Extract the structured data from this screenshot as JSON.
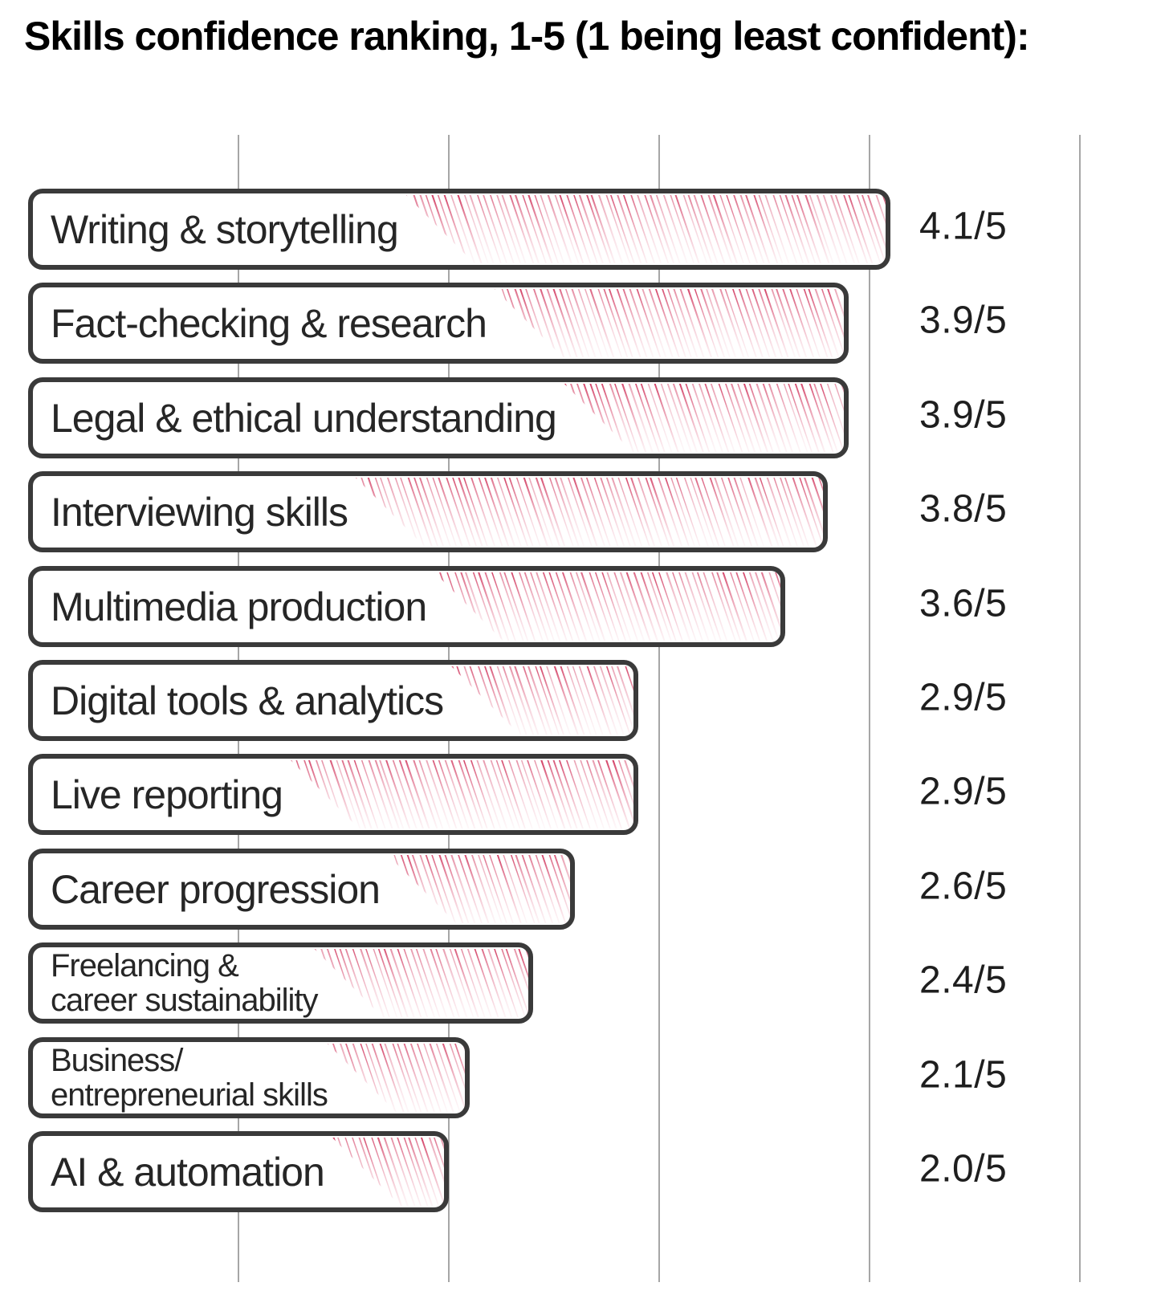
{
  "title": "Skills confidence ranking, 1-5 (1 being least confident):",
  "chart_data": {
    "type": "bar",
    "orientation": "horizontal",
    "title": "Skills confidence ranking, 1-5 (1 being least confident):",
    "categories": [
      "Writing & storytelling",
      "Fact-checking & research",
      "Legal & ethical understanding",
      "Interviewing skills",
      "Multimedia production",
      "Digital tools & analytics",
      "Live reporting",
      "Career progression",
      "Freelancing &\ncareer sustainability",
      "Business/\nentrepreneurial skills",
      "AI & automation"
    ],
    "values": [
      4.1,
      3.9,
      3.9,
      3.8,
      3.6,
      2.9,
      2.9,
      2.6,
      2.4,
      2.1,
      2.0
    ],
    "score_labels": [
      "4.1/5",
      "3.9/5",
      "3.9/5",
      "3.8/5",
      "3.6/5",
      "2.9/5",
      "2.9/5",
      "2.6/5",
      "2.4/5",
      "2.1/5",
      "2.0/5"
    ],
    "xlabel": "",
    "ylabel": "",
    "xlim": [
      0,
      5
    ],
    "gridline_values": [
      1,
      2,
      3,
      4,
      5
    ],
    "grid": "vertical",
    "legend": "none",
    "style": "hand-drawn hachure fill",
    "colors": {
      "hatch_strong": "#cf3058",
      "hatch_mid": "#d84a6e",
      "hatch_light": "#e87a95",
      "bar_border": "#3a3a3a",
      "bar_fill": "#ffffff",
      "gridline": "#a6a6a6",
      "label_text": "#262626",
      "score_text": "#1e1e1e",
      "title_text": "#000000"
    }
  }
}
